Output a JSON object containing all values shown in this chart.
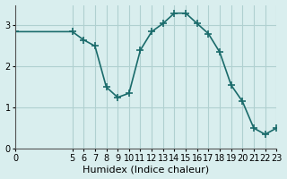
{
  "xlabel": "Humidex (Indice chaleur)",
  "ylabel": "",
  "background_color": "#d9eeee",
  "line_color": "#1a6b6b",
  "marker": "+",
  "markersize": 6,
  "linewidth": 1.2,
  "x_data": [
    0,
    5,
    6,
    7,
    8,
    9,
    10,
    11,
    12,
    13,
    14,
    15,
    16,
    17,
    18,
    19,
    20,
    21,
    22,
    23
  ],
  "y_data": [
    2.85,
    2.85,
    2.65,
    2.5,
    1.5,
    1.25,
    1.35,
    2.4,
    2.85,
    3.05,
    3.3,
    3.3,
    3.05,
    2.8,
    2.35,
    1.55,
    1.15,
    0.5,
    0.35,
    0.5
  ],
  "xlim": [
    0,
    23
  ],
  "ylim": [
    0,
    3.5
  ],
  "yticks": [
    0,
    1,
    2,
    3
  ],
  "xticks": [
    0,
    5,
    6,
    7,
    8,
    9,
    10,
    11,
    12,
    13,
    14,
    15,
    16,
    17,
    18,
    19,
    20,
    21,
    22,
    23
  ],
  "grid_color": "#b0d0d0",
  "tick_labelsize": 7,
  "xlabel_fontsize": 8
}
